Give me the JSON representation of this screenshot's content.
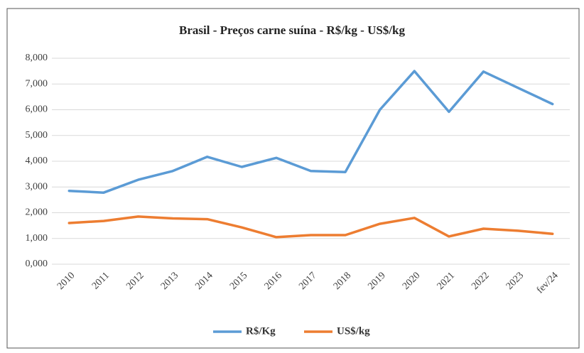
{
  "chart_data": {
    "type": "line",
    "title": "Brasil - Preços carne suína - R$/kg - US$/kg",
    "categories": [
      "2010",
      "2011",
      "2012",
      "2013",
      "2014",
      "2015",
      "2016",
      "2017",
      "2018",
      "2019",
      "2020",
      "2021",
      "2022",
      "2023",
      "fev/24"
    ],
    "series": [
      {
        "name": "R$/Kg",
        "color": "#5b9bd5",
        "values": [
          2.85,
          2.78,
          3.28,
          3.62,
          4.17,
          3.78,
          4.13,
          3.62,
          3.58,
          6.0,
          7.5,
          5.92,
          7.48,
          6.85,
          6.22
        ]
      },
      {
        "name": "US$/kg",
        "color": "#ed7d31",
        "values": [
          1.6,
          1.68,
          1.85,
          1.78,
          1.75,
          1.43,
          1.05,
          1.13,
          1.13,
          1.57,
          1.8,
          1.08,
          1.38,
          1.3,
          1.18
        ]
      }
    ],
    "ylim": [
      0,
      8
    ],
    "yticks": [
      {
        "value": 0,
        "label": "0,000"
      },
      {
        "value": 1,
        "label": "1,000"
      },
      {
        "value": 2,
        "label": "2,000"
      },
      {
        "value": 3,
        "label": "3,000"
      },
      {
        "value": 4,
        "label": "4,000"
      },
      {
        "value": 5,
        "label": "5,000"
      },
      {
        "value": 6,
        "label": "6,000"
      },
      {
        "value": 7,
        "label": "7,000"
      },
      {
        "value": 8,
        "label": "8,000"
      }
    ],
    "grid": true
  }
}
